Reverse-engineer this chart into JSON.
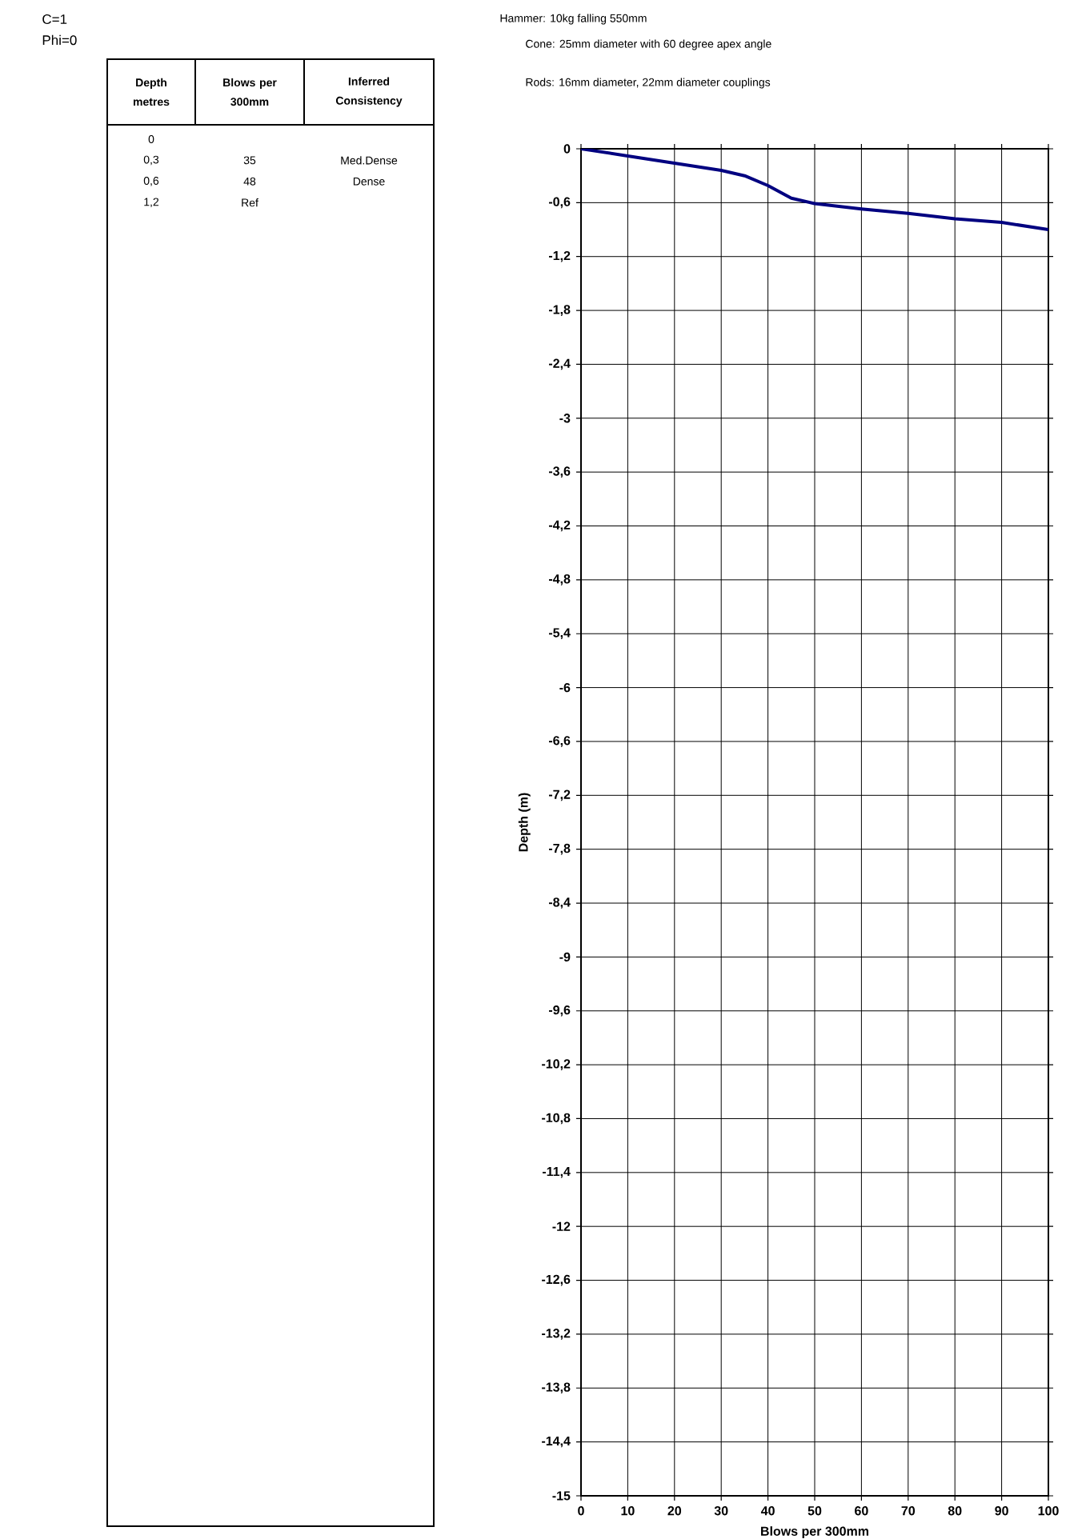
{
  "chart_data": [
    {
      "type": "other",
      "categories": [
        "Depth metres",
        "Blows per 300mm",
        "Inferred Consistency"
      ],
      "cells": [
        [
          "0",
          null,
          null
        ],
        [
          "0,3",
          "35",
          "Med.Dense"
        ],
        [
          "0,6",
          "48",
          "Dense"
        ],
        [
          "1,2",
          "Ref",
          null
        ]
      ],
      "annotations": [
        "C=1",
        "Phi=0"
      ]
    },
    {
      "type": "line",
      "xlabel": "Blows per 300mm",
      "ylabel": "Depth (m)",
      "x": [
        0,
        10,
        20,
        30,
        35,
        40,
        45,
        50,
        60,
        70,
        80,
        90,
        100
      ],
      "series": [
        {
          "color": "#000080",
          "values": [
            0,
            -0.08,
            -0.16,
            -0.24,
            -0.3,
            -0.41,
            -0.55,
            -0.61,
            -0.67,
            -0.72,
            -0.78,
            -0.82,
            -0.9
          ]
        }
      ],
      "xlim": [
        0,
        100
      ],
      "ylim": [
        -15,
        0
      ],
      "xticks": [
        0,
        10,
        20,
        30,
        40,
        50,
        60,
        70,
        80,
        90,
        100
      ],
      "yticks": [
        0,
        {
          "value": -0.6,
          "label": "-0,6"
        },
        {
          "value": -1.2,
          "label": "-1,2"
        },
        {
          "value": -1.8,
          "label": "-1,8"
        },
        {
          "value": -2.4,
          "label": "-2,4"
        },
        -3,
        {
          "value": -3.6,
          "label": "-3,6"
        },
        {
          "value": -4.2,
          "label": "-4,2"
        },
        {
          "value": -4.8,
          "label": "-4,8"
        },
        {
          "value": -5.4,
          "label": "-5,4"
        },
        -6,
        {
          "value": -6.6,
          "label": "-6,6"
        },
        {
          "value": -7.2,
          "label": "-7,2"
        },
        {
          "value": -7.8,
          "label": "-7,8"
        },
        {
          "value": -8.4,
          "label": "-8,4"
        },
        -9,
        {
          "value": -9.6,
          "label": "-9,6"
        },
        {
          "value": -10.2,
          "label": "-10,2"
        },
        {
          "value": -10.8,
          "label": "-10,8"
        },
        {
          "value": -11.4,
          "label": "-11,4"
        },
        -12,
        {
          "value": -12.6,
          "label": "-12,6"
        },
        {
          "value": -13.2,
          "label": "-13,2"
        },
        {
          "value": -13.8,
          "label": "-13,8"
        },
        {
          "value": -14.4,
          "label": "-14,4"
        },
        -15
      ],
      "grid": true,
      "marker": "none",
      "line_style": "solid",
      "annotations": [
        "Hammer:  10kg falling 550mm",
        "Cone:  25mm diameter with 60 degree apex angle",
        "Rods:  16mm diameter, 22mm diameter couplings"
      ]
    }
  ]
}
